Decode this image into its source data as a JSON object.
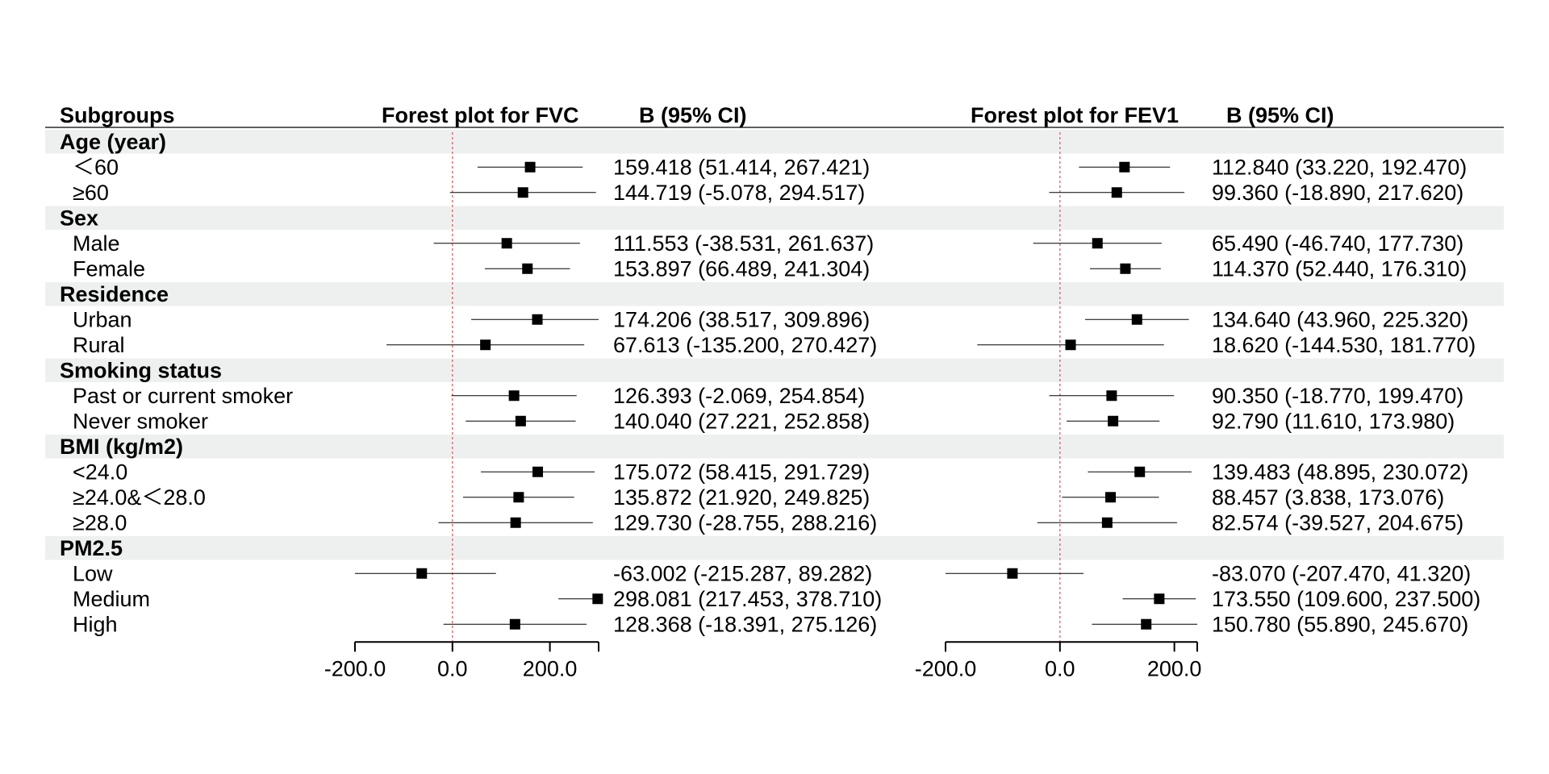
{
  "headers": {
    "subgroups": "Subgroups",
    "fvc_plot": "Forest plot for FVC",
    "fvc_ci": "B (95% CI)",
    "fev1_plot": "Forest plot for FEV1",
    "fev1_ci": "B (95% CI)"
  },
  "rows": [
    {
      "kind": "group",
      "label": "Age (year)"
    },
    {
      "kind": "sub",
      "label": "＜60",
      "fvc_text": "159.418 (51.414, 267.421)",
      "fev1_text": "112.840 (33.220, 192.470)"
    },
    {
      "kind": "sub",
      "label": "≥60",
      "fvc_text": "144.719 (-5.078, 294.517)",
      "fev1_text": "99.360 (-18.890, 217.620)"
    },
    {
      "kind": "group",
      "label": "Sex"
    },
    {
      "kind": "sub",
      "label": "Male",
      "fvc_text": "111.553 (-38.531, 261.637)",
      "fev1_text": "65.490 (-46.740, 177.730)"
    },
    {
      "kind": "sub",
      "label": "Female",
      "fvc_text": "153.897 (66.489, 241.304)",
      "fev1_text": "114.370 (52.440, 176.310)"
    },
    {
      "kind": "group",
      "label": "Residence"
    },
    {
      "kind": "sub",
      "label": "Urban",
      "fvc_text": "174.206 (38.517, 309.896)",
      "fev1_text": "134.640 (43.960, 225.320)"
    },
    {
      "kind": "sub",
      "label": "Rural",
      "fvc_text": "67.613 (-135.200, 270.427)",
      "fev1_text": "18.620 (-144.530, 181.770)"
    },
    {
      "kind": "group",
      "label": "Smoking status"
    },
    {
      "kind": "sub",
      "label": "Past or current smoker",
      "fvc_text": "126.393 (-2.069, 254.854)",
      "fev1_text": "90.350 (-18.770, 199.470)"
    },
    {
      "kind": "sub",
      "label": "Never smoker",
      "fvc_text": "140.040 (27.221, 252.858)",
      "fev1_text": "92.790 (11.610, 173.980)"
    },
    {
      "kind": "group",
      "label": "BMI (kg/m2)"
    },
    {
      "kind": "sub",
      "label": "<24.0",
      "fvc_text": "175.072 (58.415, 291.729)",
      "fev1_text": "139.483 (48.895, 230.072)"
    },
    {
      "kind": "sub",
      "label": "≥24.0&＜28.0",
      "fvc_text": "135.872 (21.920, 249.825)",
      "fev1_text": "88.457 (3.838, 173.076)"
    },
    {
      "kind": "sub",
      "label": "≥28.0",
      "fvc_text": "129.730 (-28.755, 288.216)",
      "fev1_text": "82.574 (-39.527, 204.675)"
    },
    {
      "kind": "group",
      "label": "PM2.5"
    },
    {
      "kind": "sub",
      "label": "Low",
      "fvc_text": "-63.002 (-215.287, 89.282)",
      "fev1_text": "-83.070 (-207.470, 41.320)"
    },
    {
      "kind": "sub",
      "label": "Medium",
      "fvc_text": "298.081 (217.453, 378.710)",
      "fev1_text": "173.550 (109.600, 237.500)"
    },
    {
      "kind": "sub",
      "label": "High",
      "fvc_text": "128.368 (-18.391, 275.126)",
      "fev1_text": "150.780 (55.890, 245.670)"
    }
  ],
  "chart_data": [
    {
      "type": "forest",
      "title": "Forest plot for FVC",
      "categories": [
        "＜60",
        "≥60",
        "Male",
        "Female",
        "Urban",
        "Rural",
        "Past or current smoker",
        "Never smoker",
        "<24.0",
        "≥24.0&＜28.0",
        "≥28.0",
        "Low",
        "Medium",
        "High"
      ],
      "estimate": [
        159.418,
        144.719,
        111.553,
        153.897,
        174.206,
        67.613,
        126.393,
        140.04,
        175.072,
        135.872,
        129.73,
        -63.002,
        298.081,
        128.368
      ],
      "lower": [
        51.414,
        -5.078,
        -38.531,
        66.489,
        38.517,
        -135.2,
        -2.069,
        27.221,
        58.415,
        21.92,
        -28.755,
        -215.287,
        217.453,
        -18.391
      ],
      "upper": [
        267.421,
        294.517,
        261.637,
        241.304,
        309.896,
        270.427,
        254.854,
        252.858,
        291.729,
        249.825,
        288.216,
        89.282,
        378.71,
        275.126
      ],
      "xlim": [
        -200,
        300
      ],
      "xticks": [
        "-200.0",
        "0.0",
        "200.0"
      ],
      "xtick_values": [
        -200,
        0,
        200
      ],
      "reference_line": 0,
      "reference_color": "#e05050"
    },
    {
      "type": "forest",
      "title": "Forest plot for FEV1",
      "categories": [
        "＜60",
        "≥60",
        "Male",
        "Female",
        "Urban",
        "Rural",
        "Past or current smoker",
        "Never smoker",
        "<24.0",
        "≥24.0&＜28.0",
        "≥28.0",
        "Low",
        "Medium",
        "High"
      ],
      "estimate": [
        112.84,
        99.36,
        65.49,
        114.37,
        134.64,
        18.62,
        90.35,
        92.79,
        139.483,
        88.457,
        82.574,
        -83.07,
        173.55,
        150.78
      ],
      "lower": [
        33.22,
        -18.89,
        -46.74,
        52.44,
        43.96,
        -144.53,
        -18.77,
        11.61,
        48.895,
        3.838,
        -39.527,
        -207.47,
        109.6,
        55.89
      ],
      "upper": [
        192.47,
        217.62,
        177.73,
        176.31,
        225.32,
        181.77,
        199.47,
        173.98,
        230.072,
        173.076,
        204.675,
        41.32,
        237.5,
        245.67
      ],
      "xlim": [
        -200,
        240
      ],
      "xticks": [
        "-200.0",
        "0.0",
        "200.0"
      ],
      "xtick_values": [
        -200,
        0,
        200
      ],
      "reference_line": 0,
      "reference_color": "#e05050"
    }
  ],
  "colors": {
    "group_band": "#eef0f0",
    "reference_line": "#e05050",
    "marker": "#000000"
  }
}
